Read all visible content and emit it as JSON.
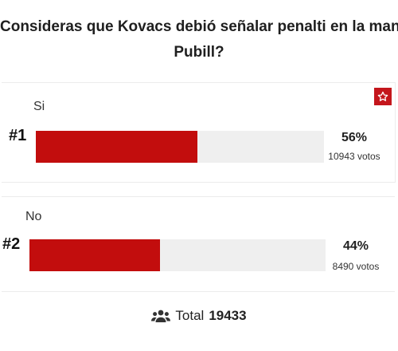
{
  "poll": {
    "question_line1": "Consideras que Kovacs debió señalar penalti en la mano de",
    "question_line2": "Pubill?",
    "options": [
      {
        "rank": "#1",
        "label": "Si",
        "percent_label": "56%",
        "percent_value": 56,
        "votes_label": "10943 votos"
      },
      {
        "rank": "#2",
        "label": "No",
        "percent_label": "44%",
        "percent_value": 44,
        "votes_label": "8490 votos"
      }
    ],
    "total_label": "Total",
    "total_value": "19433"
  },
  "colors": {
    "accent": "#c20d0d",
    "track": "#efefef",
    "badge": "#c4161c"
  },
  "icons": {
    "star": "star-icon",
    "users": "users-icon"
  }
}
